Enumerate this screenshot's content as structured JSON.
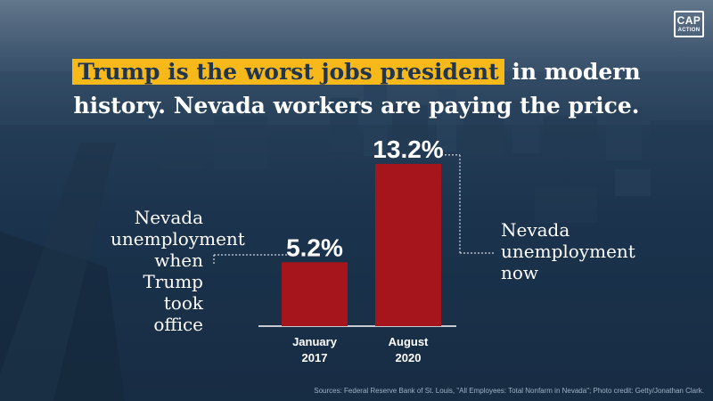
{
  "logo": {
    "line1": "CAP",
    "line2": "ACTION"
  },
  "headline": {
    "highlight": "Trump is the worst jobs president",
    "rest_line1": " in modern",
    "line2": "history. Nevada workers are paying the price."
  },
  "left_note": "Nevada unemployment when Trump took office",
  "right_note": "Nevada unemployment now",
  "source": "Sources: Federal Reserve Bank of St. Louis, \"All Employees: Total Nonfarm in Nevada\"; Photo credit: Getty/Jonathan Clark.",
  "colors": {
    "bar": "#a5151b",
    "highlight": "#f7b81a",
    "background": "#1f3550",
    "text": "#ffffff"
  },
  "chart_data": {
    "type": "bar",
    "categories": [
      [
        "January",
        "2017"
      ],
      [
        "August",
        "2020"
      ]
    ],
    "values": [
      5.2,
      13.2
    ],
    "value_labels": [
      "5.2%",
      "13.2%"
    ],
    "unit": "%",
    "ylim": [
      0,
      14.5
    ],
    "grid": false,
    "legend": "none"
  }
}
